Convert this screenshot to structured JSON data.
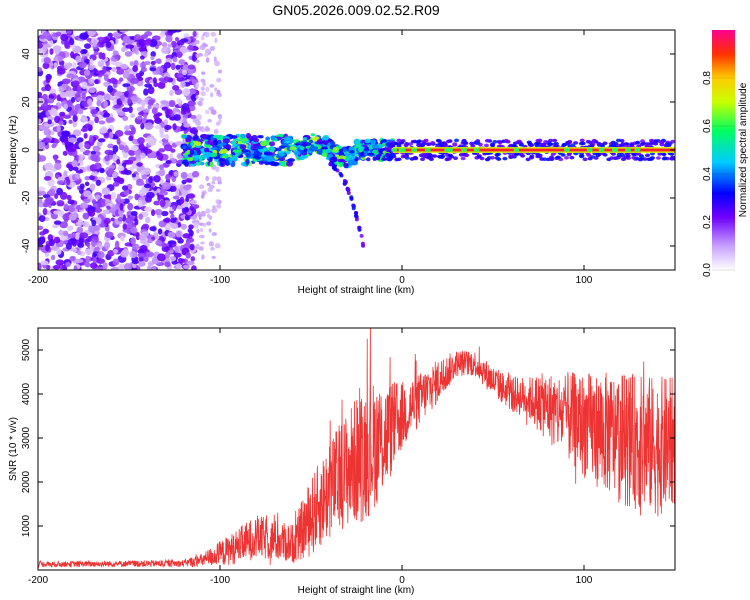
{
  "title": "GN05.2026.009.02.52.R09",
  "chart_data": [
    {
      "type": "heatmap",
      "xlabel": "Height of straight line (km)",
      "ylabel": "Frequency (Hz)",
      "xlim": [
        -200,
        150
      ],
      "ylim": [
        -50,
        50
      ],
      "xticks": [
        -200,
        -100,
        0,
        100
      ],
      "yticks": [
        -40,
        -20,
        0,
        20,
        40
      ],
      "colorbar": {
        "label": "Normalized spectral amplitude",
        "range": [
          0,
          1
        ],
        "ticks": [
          "0.0",
          "0.2",
          "0.4",
          "0.6",
          "0.8"
        ],
        "tick_values": [
          0,
          0.2,
          0.4,
          0.6,
          0.8
        ]
      },
      "regions": [
        {
          "name": "broadband noise",
          "x": [
            -200,
            -113
          ],
          "f": [
            -50,
            50
          ],
          "amplitude": 0.15
        },
        {
          "name": "sparse noise",
          "x": [
            -113,
            -100
          ],
          "f": [
            -50,
            50
          ],
          "amplitude": 0.05
        },
        {
          "name": "onset band",
          "x": [
            -120,
            -50
          ],
          "f": [
            -4,
            5
          ],
          "amplitude": 0.3
        },
        {
          "name": "Doppler tail",
          "x": [
            -40,
            -21
          ],
          "f": [
            -40,
            -5
          ],
          "amplitude": 0.35
        },
        {
          "name": "stable carrier",
          "x": [
            -5,
            150
          ],
          "f": [
            -1,
            1
          ],
          "amplitude": 0.95
        }
      ]
    },
    {
      "type": "line",
      "xlabel": "Height of straight line (km)",
      "ylabel": "SNR (10 * v/v)",
      "xlim": [
        -200,
        150
      ],
      "ylim": [
        0,
        5500
      ],
      "xticks": [
        -200,
        -100,
        0,
        100
      ],
      "yticks": [
        1000,
        2000,
        3000,
        4000,
        5000
      ],
      "color": "#ee3333",
      "envelope": [
        {
          "x": -200,
          "mean": 130,
          "spread": 60
        },
        {
          "x": -120,
          "mean": 150,
          "spread": 80
        },
        {
          "x": -110,
          "mean": 220,
          "spread": 150
        },
        {
          "x": -95,
          "mean": 450,
          "spread": 350
        },
        {
          "x": -80,
          "mean": 750,
          "spread": 500
        },
        {
          "x": -60,
          "mean": 600,
          "spread": 450
        },
        {
          "x": -50,
          "mean": 1200,
          "spread": 900
        },
        {
          "x": -35,
          "mean": 2100,
          "spread": 1200
        },
        {
          "x": -20,
          "mean": 2700,
          "spread": 1600
        },
        {
          "x": -10,
          "mean": 3000,
          "spread": 1300
        },
        {
          "x": 0,
          "mean": 3500,
          "spread": 800
        },
        {
          "x": 10,
          "mean": 3900,
          "spread": 600
        },
        {
          "x": 20,
          "mean": 4300,
          "spread": 500
        },
        {
          "x": 30,
          "mean": 4700,
          "spread": 300
        },
        {
          "x": 40,
          "mean": 4700,
          "spread": 300
        },
        {
          "x": 50,
          "mean": 4300,
          "spread": 350
        },
        {
          "x": 60,
          "mean": 4000,
          "spread": 400
        },
        {
          "x": 70,
          "mean": 3900,
          "spread": 500
        },
        {
          "x": 80,
          "mean": 3700,
          "spread": 800
        },
        {
          "x": 90,
          "mean": 3500,
          "spread": 1000
        },
        {
          "x": 100,
          "mean": 3300,
          "spread": 1200
        },
        {
          "x": 120,
          "mean": 3000,
          "spread": 1500
        },
        {
          "x": 140,
          "mean": 2800,
          "spread": 1600
        },
        {
          "x": 150,
          "mean": 2900,
          "spread": 1500
        }
      ]
    }
  ]
}
